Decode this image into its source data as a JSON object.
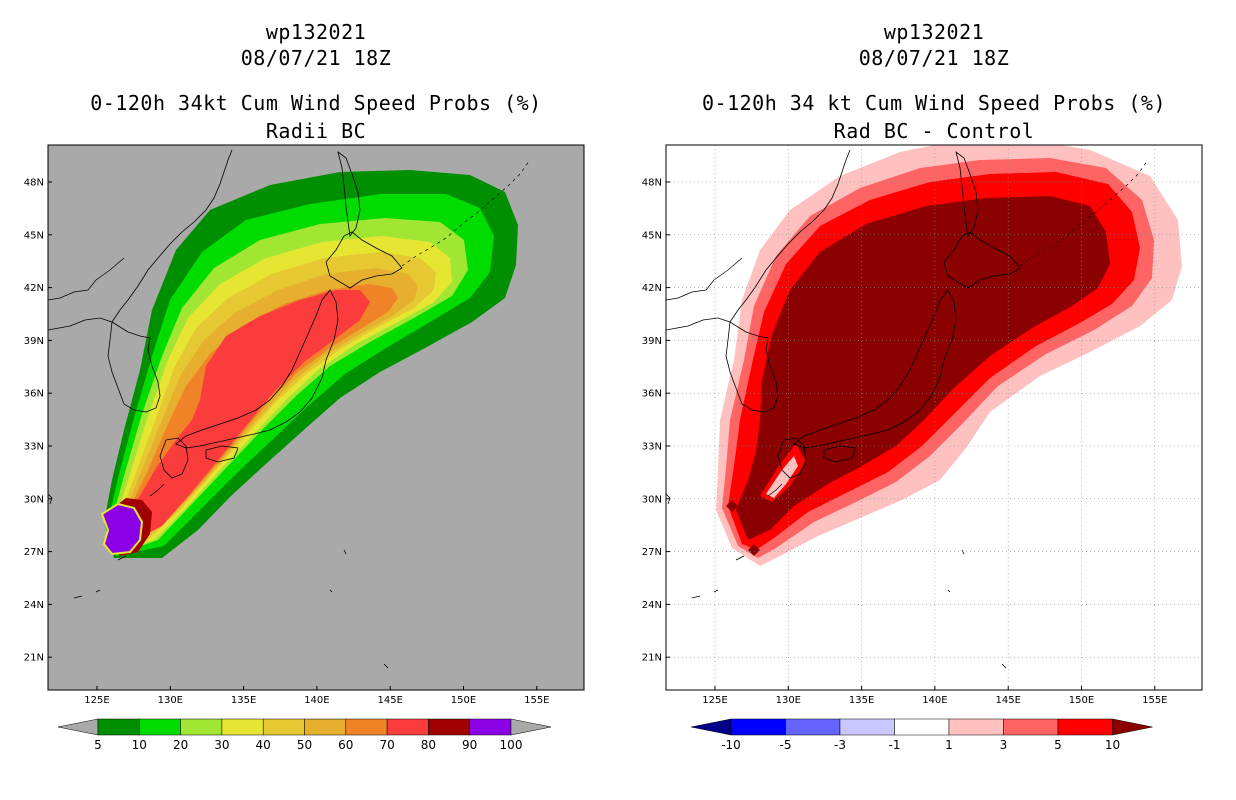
{
  "left": {
    "storm": "wp132021",
    "date": "08/07/21 18Z",
    "title": "0-120h 34kt Cum Wind Speed Probs (%)",
    "subtitle": "Radii BC",
    "background": "#a9a9a9",
    "colorbar": {
      "colors": [
        "#008f00",
        "#00dc00",
        "#a0e632",
        "#e6e632",
        "#e6c832",
        "#e6af2d",
        "#f08228",
        "#fa3c3c",
        "#a00000",
        "#8c00e6"
      ],
      "labels": [
        "5",
        "10",
        "20",
        "30",
        "40",
        "50",
        "60",
        "70",
        "80",
        "90",
        "100"
      ]
    }
  },
  "right": {
    "storm": "wp132021",
    "date": "08/07/21 18Z",
    "title": "0-120h 34 kt Cum Wind Speed Probs (%)",
    "subtitle": "Rad BC - Control",
    "background": "#ffffff",
    "colorbar": {
      "colors": [
        "#0000ff",
        "#6464ff",
        "#c8c8ff",
        "#ffffff",
        "#ffc0c0",
        "#ff6464",
        "#ff0000"
      ],
      "end_low": "#00008b",
      "end_high": "#8b0000",
      "labels": [
        "-10",
        "-5",
        "-3",
        "-1",
        "1",
        "3",
        "5",
        "10"
      ]
    }
  },
  "axes": {
    "lon_labels": [
      "125E",
      "130E",
      "135E",
      "140E",
      "145E",
      "150E",
      "155E"
    ],
    "lat_labels": [
      "48N",
      "45N",
      "42N",
      "39N",
      "36N",
      "33N",
      "30N",
      "27N",
      "24N",
      "21N"
    ]
  }
}
